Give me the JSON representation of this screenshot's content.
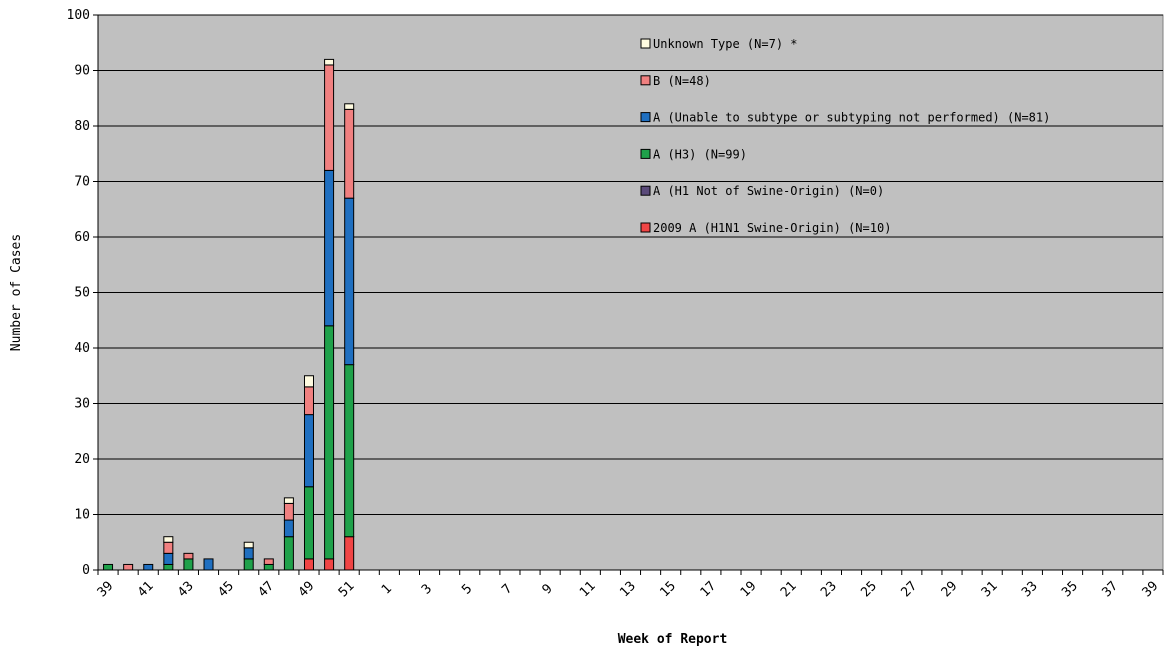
{
  "chart_data": {
    "type": "bar",
    "stacked": true,
    "title": "",
    "xlabel": "Week of Report",
    "ylabel": "Number of Cases",
    "ylim": [
      0,
      100
    ],
    "yticks": [
      0,
      10,
      20,
      30,
      40,
      50,
      60,
      70,
      80,
      90,
      100
    ],
    "grid": true,
    "legend_position": "top-right (inside plot)",
    "plot_background": "#c0c0c0",
    "categories": [
      "39",
      "40",
      "41",
      "42",
      "43",
      "44",
      "45",
      "46",
      "47",
      "48",
      "49",
      "50",
      "51",
      "52",
      "1",
      "2",
      "3",
      "4",
      "5",
      "6",
      "7",
      "8",
      "9",
      "10",
      "11",
      "12",
      "13",
      "14",
      "15",
      "16",
      "17",
      "18",
      "19",
      "20",
      "21",
      "22",
      "23",
      "24",
      "25",
      "26",
      "27",
      "28",
      "29",
      "30",
      "31",
      "32",
      "33",
      "34",
      "35",
      "36",
      "37",
      "38",
      "39"
    ],
    "xtick_labels": [
      "39",
      "41",
      "43",
      "45",
      "47",
      "49",
      "51",
      "1",
      "3",
      "5",
      "7",
      "9",
      "11",
      "13",
      "15",
      "17",
      "19",
      "21",
      "23",
      "25",
      "27",
      "29",
      "31",
      "33",
      "35",
      "37",
      "39"
    ],
    "series": [
      {
        "name": "2009 A (H1N1 Swine-Origin) (N=10)",
        "color": "#f04545",
        "values": [
          0,
          0,
          0,
          0,
          0,
          0,
          0,
          0,
          0,
          0,
          2,
          2,
          6,
          0,
          0,
          0,
          0,
          0,
          0,
          0,
          0,
          0,
          0,
          0,
          0,
          0,
          0,
          0,
          0,
          0,
          0,
          0,
          0,
          0,
          0,
          0,
          0,
          0,
          0,
          0,
          0,
          0,
          0,
          0,
          0,
          0,
          0,
          0,
          0,
          0,
          0,
          0,
          0
        ]
      },
      {
        "name": "A (H1 Not of Swine-Origin) (N=0)",
        "color": "#5a4a7a",
        "values": [
          0,
          0,
          0,
          0,
          0,
          0,
          0,
          0,
          0,
          0,
          0,
          0,
          0,
          0,
          0,
          0,
          0,
          0,
          0,
          0,
          0,
          0,
          0,
          0,
          0,
          0,
          0,
          0,
          0,
          0,
          0,
          0,
          0,
          0,
          0,
          0,
          0,
          0,
          0,
          0,
          0,
          0,
          0,
          0,
          0,
          0,
          0,
          0,
          0,
          0,
          0,
          0,
          0
        ]
      },
      {
        "name": "A (H3) (N=99)",
        "color": "#1fa14a",
        "values": [
          1,
          0,
          0,
          1,
          2,
          0,
          0,
          2,
          1,
          6,
          13,
          42,
          31,
          0,
          0,
          0,
          0,
          0,
          0,
          0,
          0,
          0,
          0,
          0,
          0,
          0,
          0,
          0,
          0,
          0,
          0,
          0,
          0,
          0,
          0,
          0,
          0,
          0,
          0,
          0,
          0,
          0,
          0,
          0,
          0,
          0,
          0,
          0,
          0,
          0,
          0,
          0,
          0
        ]
      },
      {
        "name": "A (Unable to subtype or subtyping not performed) (N=81)",
        "color": "#1f6fc0",
        "values": [
          0,
          0,
          1,
          2,
          0,
          2,
          0,
          2,
          0,
          3,
          13,
          28,
          30,
          0,
          0,
          0,
          0,
          0,
          0,
          0,
          0,
          0,
          0,
          0,
          0,
          0,
          0,
          0,
          0,
          0,
          0,
          0,
          0,
          0,
          0,
          0,
          0,
          0,
          0,
          0,
          0,
          0,
          0,
          0,
          0,
          0,
          0,
          0,
          0,
          0,
          0,
          0,
          0
        ]
      },
      {
        "name": "B (N=48)",
        "color": "#f08080",
        "values": [
          0,
          1,
          0,
          2,
          1,
          0,
          0,
          0,
          1,
          3,
          5,
          19,
          16,
          0,
          0,
          0,
          0,
          0,
          0,
          0,
          0,
          0,
          0,
          0,
          0,
          0,
          0,
          0,
          0,
          0,
          0,
          0,
          0,
          0,
          0,
          0,
          0,
          0,
          0,
          0,
          0,
          0,
          0,
          0,
          0,
          0,
          0,
          0,
          0,
          0,
          0,
          0,
          0
        ]
      },
      {
        "name": "Unknown Type (N=7) *",
        "color": "#fffbe0",
        "values": [
          0,
          0,
          0,
          1,
          0,
          0,
          0,
          1,
          0,
          1,
          2,
          1,
          1,
          0,
          0,
          0,
          0,
          0,
          0,
          0,
          0,
          0,
          0,
          0,
          0,
          0,
          0,
          0,
          0,
          0,
          0,
          0,
          0,
          0,
          0,
          0,
          0,
          0,
          0,
          0,
          0,
          0,
          0,
          0,
          0,
          0,
          0,
          0,
          0,
          0,
          0,
          0,
          0
        ]
      }
    ],
    "legend_order": [
      "Unknown Type (N=7) *",
      "B (N=48)",
      "A (Unable to subtype or subtyping not performed) (N=81)",
      "A (H3) (N=99)",
      "A (H1 Not of Swine-Origin) (N=0)",
      "2009 A (H1N1 Swine-Origin) (N=10)"
    ]
  }
}
